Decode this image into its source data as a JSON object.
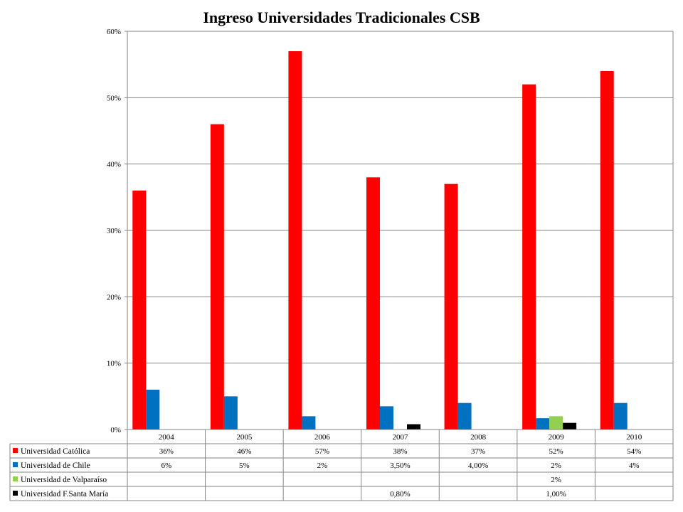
{
  "chart_data": {
    "type": "bar",
    "title": "Ingreso Universidades Tradicionales CSB",
    "categories": [
      "2004",
      "2005",
      "2006",
      "2007",
      "2008",
      "2009",
      "2010"
    ],
    "ylim": [
      0,
      60
    ],
    "yticks": [
      {
        "value": 0,
        "label": "0%"
      },
      {
        "value": 10,
        "label": "10%"
      },
      {
        "value": 20,
        "label": "20%"
      },
      {
        "value": 30,
        "label": "30%"
      },
      {
        "value": 40,
        "label": "40%"
      },
      {
        "value": 50,
        "label": "50%"
      },
      {
        "value": 60,
        "label": "60%"
      }
    ],
    "grid": true,
    "legend": "data-table",
    "series": [
      {
        "name": "Universidad Católica",
        "color": "#ff0000",
        "values": [
          36,
          46,
          57,
          38,
          37,
          52,
          54
        ],
        "labels": [
          "36%",
          "46%",
          "57%",
          "38%",
          "37%",
          "52%",
          "54%"
        ]
      },
      {
        "name": "Universidad de Chile",
        "color": "#0070c0",
        "values": [
          6,
          5,
          2,
          3.5,
          4,
          1.7,
          4
        ],
        "labels": [
          "6%",
          "5%",
          "2%",
          "3,50%",
          "4,00%",
          "2%",
          "4%"
        ]
      },
      {
        "name": "Universidad  de Valparaíso",
        "color": "#92d050",
        "values": [
          null,
          null,
          null,
          null,
          null,
          2,
          null
        ],
        "labels": [
          "",
          "",
          "",
          "",
          "",
          "2%",
          ""
        ]
      },
      {
        "name": "Universidad F.Santa María",
        "color": "#000000",
        "values": [
          null,
          null,
          null,
          0.8,
          null,
          1,
          null
        ],
        "labels": [
          "",
          "",
          "",
          "0,80%",
          "",
          "1,00%",
          ""
        ]
      }
    ]
  }
}
